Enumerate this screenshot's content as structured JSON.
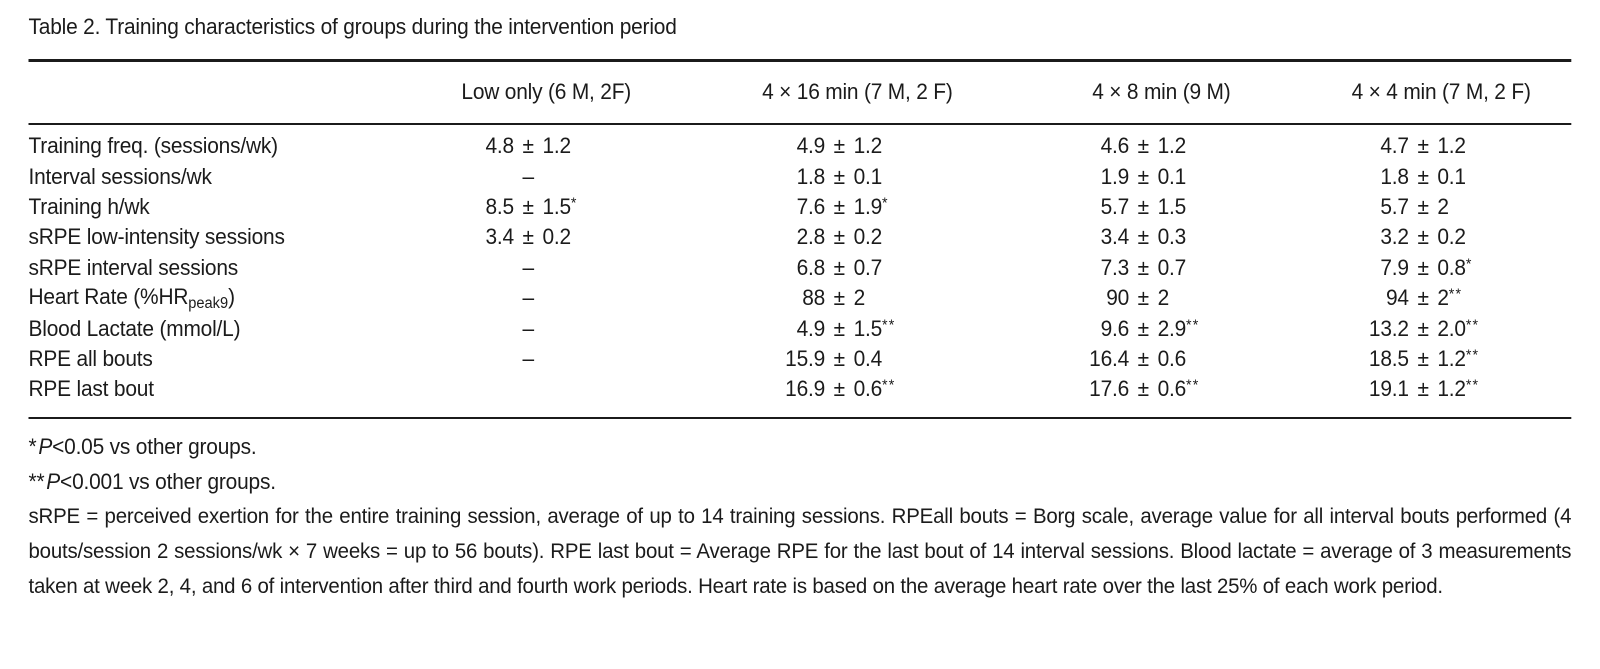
{
  "table": {
    "title": "Table 2. Training characteristics of groups during the intervention period",
    "columns": [
      "",
      "Low only (6 M, 2F)",
      "4 × 16 min (7 M, 2 F)",
      "4 × 8 min (9 M)",
      "4 × 4 min (7 M, 2 F)"
    ],
    "rows": [
      {
        "label": {
          "text": "Training freq. (sessions/wk)"
        },
        "cells": [
          "4.8 ± 1.2",
          "4.9 ± 1.2",
          "4.6 ± 1.2",
          "4.7 ± 1.2"
        ]
      },
      {
        "label": {
          "text": "Interval sessions/wk"
        },
        "cells": [
          "–",
          "1.8 ± 0.1",
          "1.9 ± 0.1",
          "1.8 ± 0.1"
        ]
      },
      {
        "label": {
          "text": "Training h/wk"
        },
        "cells": [
          "8.5 ± 1.5*",
          "7.6 ± 1.9*",
          "5.7 ± 1.5",
          "5.7 ± 2"
        ]
      },
      {
        "label": {
          "text": "sRPE low-intensity sessions"
        },
        "cells": [
          "3.4 ± 0.2",
          "2.8 ± 0.2",
          "3.4 ± 0.3",
          "3.2 ± 0.2"
        ]
      },
      {
        "label": {
          "text": "sRPE interval sessions"
        },
        "cells": [
          "–",
          "6.8 ± 0.7",
          "7.3 ± 0.7",
          "7.9 ± 0.8*"
        ]
      },
      {
        "label": {
          "text": "Heart Rate (%HR",
          "sub": "peak9",
          "after": ")"
        },
        "cells": [
          "–",
          "88 ± 2",
          "90 ± 2",
          "94 ± 2**"
        ]
      },
      {
        "label": {
          "text": "Blood Lactate (mmol/L)"
        },
        "cells": [
          "–",
          "4.9 ± 1.5**",
          "9.6 ± 2.9**",
          "13.2 ± 2.0**"
        ]
      },
      {
        "label": {
          "text": "RPE all bouts"
        },
        "cells": [
          "–",
          "15.9 ± 0.4",
          "16.4 ± 0.6",
          "18.5 ± 1.2**"
        ]
      },
      {
        "label": {
          "text": "RPE last bout"
        },
        "cells": [
          "",
          "16.9 ± 0.6**",
          "17.6 ± 0.6**",
          "19.1 ± 1.2**"
        ]
      }
    ]
  },
  "footnotes": [
    {
      "stars": "*",
      "var": "P",
      "text": "<0.05 vs other groups."
    },
    {
      "stars": "**",
      "var": "P",
      "text": "<0.001 vs other groups."
    }
  ],
  "note": "sRPE = perceived exertion for the entire training session, average of up to 14 training sessions. RPEall bouts = Borg scale, average value for all interval bouts performed (4 bouts/session 2 sessions/wk × 7 weeks = up to 56 bouts). RPE last bout = Average RPE for the last bout of 14 interval sessions. Blood lactate = average of 3 measurements taken at week 2, 4, and 6 of intervention after third and fourth work periods. Heart rate is based on the average heart rate over the last 25% of each work period."
}
